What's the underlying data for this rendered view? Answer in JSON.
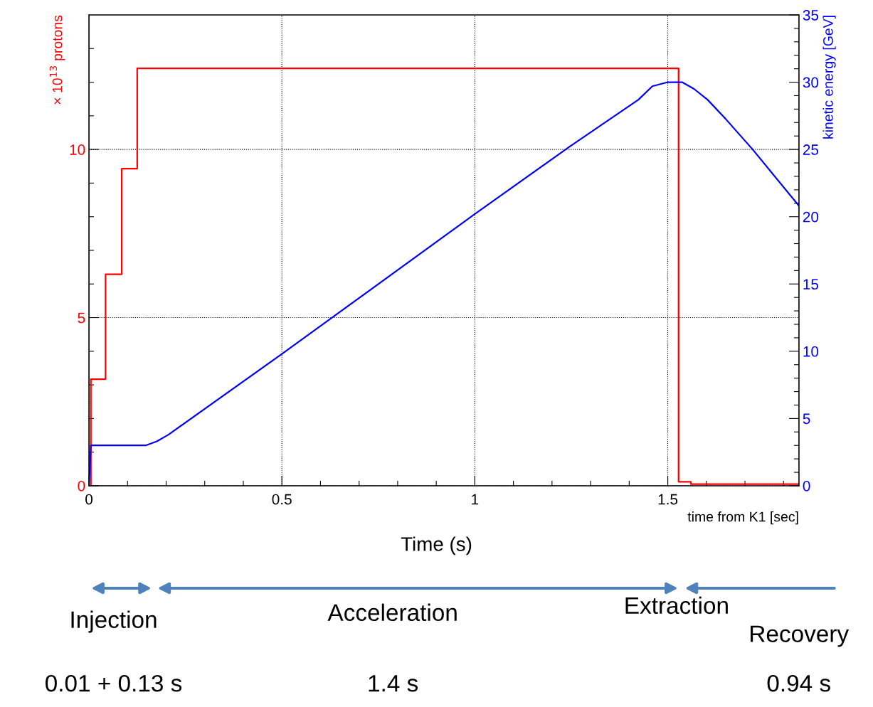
{
  "chart_data": {
    "type": "line",
    "xlabel": "time from K1 [sec]",
    "ylabel": "× 10$^{13}$ protons",
    "y2label": "kinetic energy [GeV]",
    "xlim": [
      0,
      1.84
    ],
    "ylim": [
      0,
      14
    ],
    "y2lim": [
      0,
      35
    ],
    "xticks": [
      0,
      {
        "value": 0.1,
        "label": null
      },
      {
        "value": 0.2,
        "label": null
      },
      {
        "value": 0.3,
        "label": null
      },
      {
        "value": 0.4,
        "label": null
      },
      {
        "value": 0.5,
        "label": "0.5"
      },
      {
        "value": 0.6,
        "label": null
      },
      {
        "value": 0.7,
        "label": null
      },
      {
        "value": 0.8,
        "label": null
      },
      {
        "value": 0.9,
        "label": null
      },
      1,
      {
        "value": 1.1,
        "label": null
      },
      {
        "value": 1.2,
        "label": null
      },
      {
        "value": 1.3,
        "label": null
      },
      {
        "value": 1.4,
        "label": null
      },
      {
        "value": 1.5,
        "label": "1.5"
      },
      {
        "value": 1.6,
        "label": null
      },
      {
        "value": 1.7,
        "label": null
      },
      {
        "value": 1.8,
        "label": null
      }
    ],
    "yticks": [
      0,
      {
        "value": 1,
        "label": null
      },
      {
        "value": 2,
        "label": null
      },
      {
        "value": 3,
        "label": null
      },
      {
        "value": 4,
        "label": null
      },
      5,
      {
        "value": 6,
        "label": null
      },
      {
        "value": 7,
        "label": null
      },
      {
        "value": 8,
        "label": null
      },
      {
        "value": 9,
        "label": null
      },
      10,
      {
        "value": 11,
        "label": null
      },
      {
        "value": 12,
        "label": null
      },
      {
        "value": 13,
        "label": null
      }
    ],
    "y2ticks": [
      0,
      {
        "value": 1,
        "label": null
      },
      {
        "value": 2,
        "label": null
      },
      {
        "value": 3,
        "label": null
      },
      {
        "value": 4,
        "label": null
      },
      5,
      {
        "value": 6,
        "label": null
      },
      {
        "value": 7,
        "label": null
      },
      {
        "value": 8,
        "label": null
      },
      {
        "value": 9,
        "label": null
      },
      10,
      {
        "value": 11,
        "label": null
      },
      {
        "value": 12,
        "label": null
      },
      {
        "value": 13,
        "label": null
      },
      {
        "value": 14,
        "label": null
      },
      15,
      {
        "value": 16,
        "label": null
      },
      {
        "value": 17,
        "label": null
      },
      {
        "value": 18,
        "label": null
      },
      {
        "value": 19,
        "label": null
      },
      20,
      {
        "value": 21,
        "label": null
      },
      {
        "value": 22,
        "label": null
      },
      {
        "value": 23,
        "label": null
      },
      {
        "value": 24,
        "label": null
      },
      25,
      {
        "value": 26,
        "label": null
      },
      {
        "value": 27,
        "label": null
      },
      {
        "value": 28,
        "label": null
      },
      {
        "value": 29,
        "label": null
      },
      30,
      {
        "value": 31,
        "label": null
      },
      {
        "value": 32,
        "label": null
      },
      {
        "value": 33,
        "label": null
      },
      {
        "value": 34,
        "label": null
      },
      35
    ],
    "grid": true,
    "marker": "none",
    "line_style": "solid",
    "series": [
      {
        "type": "step",
        "color": "#ff0000",
        "x": [
          0,
          0.005,
          0.043,
          0.085,
          0.125,
          1.528,
          1.56,
          1.84
        ],
        "values": [
          0,
          3.17,
          6.29,
          9.43,
          12.41,
          0.12,
          0.05,
          0.05
        ]
      },
      {
        "type": "line",
        "axis": "y2",
        "color": "#0000ff",
        "x": [
          0,
          0.005,
          0.147,
          0.176,
          0.206,
          0.5,
          1.0,
          1.245,
          1.424,
          1.46,
          1.5,
          1.537,
          1.568,
          1.603,
          1.649,
          1.72,
          1.84
        ],
        "values": [
          0,
          3.0,
          3.0,
          3.3,
          3.8,
          9.8,
          20.2,
          25.2,
          28.7,
          29.7,
          30.0,
          30.0,
          29.5,
          28.7,
          27.3,
          25.0,
          20.8
        ]
      }
    ],
    "annotations": [
      "Time (s)",
      "Injection",
      "Acceleration",
      "Extraction",
      "Recovery",
      "0.01 + 0.13 s",
      "1.4 s",
      "0.94 s"
    ]
  }
}
